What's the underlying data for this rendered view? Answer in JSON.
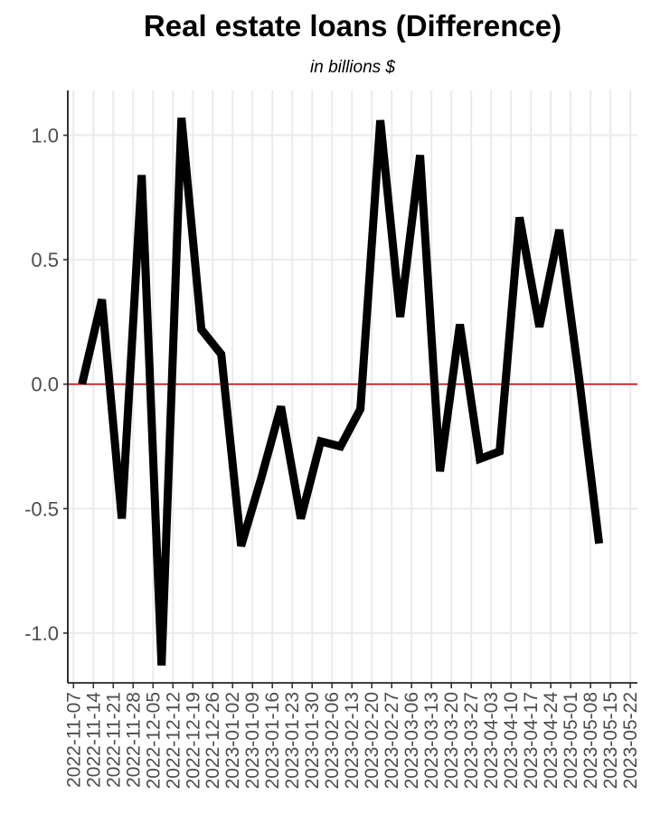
{
  "chart_data": {
    "type": "line",
    "title": "Real estate loans (Difference)",
    "subtitle": "in billions $",
    "xlabel": "",
    "ylabel": "",
    "ylim": [
      -1.2,
      1.18
    ],
    "yticks": [
      -1.0,
      -0.5,
      0.0,
      0.5,
      1.0
    ],
    "ytick_labels": [
      "-1.0",
      "-0.5",
      "0.0",
      "0.5",
      "1.0"
    ],
    "x": [
      "2022-11-07",
      "2022-11-14",
      "2022-11-21",
      "2022-11-28",
      "2022-12-05",
      "2022-12-12",
      "2022-12-19",
      "2022-12-26",
      "2023-01-02",
      "2023-01-09",
      "2023-01-16",
      "2023-01-23",
      "2023-01-30",
      "2023-02-06",
      "2023-02-13",
      "2023-02-20",
      "2023-02-27",
      "2023-03-06",
      "2023-03-13",
      "2023-03-20",
      "2023-03-27",
      "2023-04-03",
      "2023-04-10",
      "2023-04-17",
      "2023-04-24",
      "2023-05-01",
      "2023-05-08",
      "2023-05-15",
      "2023-05-22"
    ],
    "xtick_labels": [
      "2022-11-07",
      "2022-11-14",
      "2022-11-21",
      "2022-11-28",
      "2022-12-05",
      "2022-12-12",
      "2022-12-19",
      "2022-12-26",
      "2023-01-02",
      "2023-01-09",
      "2023-01-16",
      "2023-01-23",
      "2023-01-30",
      "2023-02-06",
      "2023-02-13",
      "2023-02-20",
      "2023-02-27",
      "2023-03-06",
      "2023-03-13",
      "2023-03-20",
      "2023-03-27",
      "2023-04-03",
      "2023-04-10",
      "2023-04-17",
      "2023-04-24",
      "2023-05-01",
      "2023-05-08",
      "2023-05-15",
      "2023-05-22"
    ],
    "series": [
      {
        "color": "#000000",
        "points": [
          {
            "x": "2022-11-10",
            "y": 0.0
          },
          {
            "x": "2022-11-17",
            "y": 0.34
          },
          {
            "x": "2022-11-24",
            "y": -0.54
          },
          {
            "x": "2022-12-01",
            "y": 0.84
          },
          {
            "x": "2022-12-08",
            "y": -1.13
          },
          {
            "x": "2022-12-15",
            "y": 1.07
          },
          {
            "x": "2022-12-22",
            "y": 0.22
          },
          {
            "x": "2022-12-29",
            "y": 0.12
          },
          {
            "x": "2023-01-05",
            "y": -0.65
          },
          {
            "x": "2023-01-12",
            "y": -0.38
          },
          {
            "x": "2023-01-19",
            "y": -0.09
          },
          {
            "x": "2023-01-26",
            "y": -0.54
          },
          {
            "x": "2023-02-02",
            "y": -0.23
          },
          {
            "x": "2023-02-09",
            "y": -0.25
          },
          {
            "x": "2023-02-16",
            "y": -0.1
          },
          {
            "x": "2023-02-23",
            "y": 1.06
          },
          {
            "x": "2023-03-02",
            "y": 0.27
          },
          {
            "x": "2023-03-09",
            "y": 0.92
          },
          {
            "x": "2023-03-16",
            "y": -0.35
          },
          {
            "x": "2023-03-23",
            "y": 0.24
          },
          {
            "x": "2023-03-30",
            "y": -0.3
          },
          {
            "x": "2023-04-06",
            "y": -0.27
          },
          {
            "x": "2023-04-13",
            "y": 0.67
          },
          {
            "x": "2023-04-20",
            "y": 0.23
          },
          {
            "x": "2023-04-27",
            "y": 0.62
          },
          {
            "x": "2023-05-04",
            "y": 0.02
          },
          {
            "x": "2023-05-11",
            "y": -0.64
          }
        ]
      }
    ],
    "reference_line": {
      "y": 0.0,
      "color": "#cc0000"
    },
    "grid": true,
    "legend": "none"
  }
}
